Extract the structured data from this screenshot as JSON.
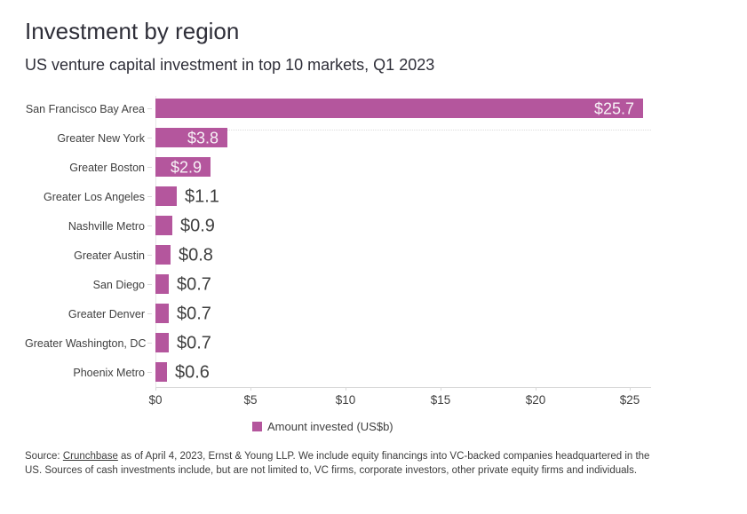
{
  "header": {
    "title": "Investment by region",
    "subtitle": "US venture capital investment in top 10 markets, Q1 2023"
  },
  "chart_data": {
    "type": "bar",
    "orientation": "horizontal",
    "title": "Investment by region",
    "subtitle": "US venture capital investment in top 10 markets, Q1 2023",
    "categories": [
      "San Francisco Bay Area",
      "Greater New York",
      "Greater Boston",
      "Greater Los Angeles",
      "Nashville Metro",
      "Greater Austin",
      "San Diego",
      "Greater Denver",
      "Greater Washington, DC",
      "Phoenix Metro"
    ],
    "values": [
      25.7,
      3.8,
      2.9,
      1.1,
      0.9,
      0.8,
      0.7,
      0.7,
      0.7,
      0.6
    ],
    "value_labels": [
      "$25.7",
      "$3.8",
      "$2.9",
      "$1.1",
      "$0.9",
      "$0.8",
      "$0.7",
      "$0.7",
      "$0.7",
      "$0.6"
    ],
    "xlabel": "",
    "ylabel": "",
    "xlim": [
      0,
      26.1
    ],
    "tick_values": [
      0,
      5,
      10,
      15,
      20,
      25
    ],
    "tick_labels": [
      "$0",
      "$5",
      "$10",
      "$15",
      "$20",
      "$25"
    ],
    "grid": "off",
    "bar_color": "#b4569d",
    "inside_label_color": "#f7f2f6",
    "outside_label_color": "#404040",
    "legend": {
      "label": "Amount invested (US$b)",
      "position": "bottom"
    }
  },
  "footer": {
    "source_prefix": "Source: ",
    "source_link": "Crunchbase",
    "source_rest": " as of April 4, 2023, Ernst & Young LLP. We include equity financings into VC-backed companies headquartered in the US. Sources of cash investments include, but are not limited to, VC firms, corporate investors, other private equity firms and individuals."
  }
}
